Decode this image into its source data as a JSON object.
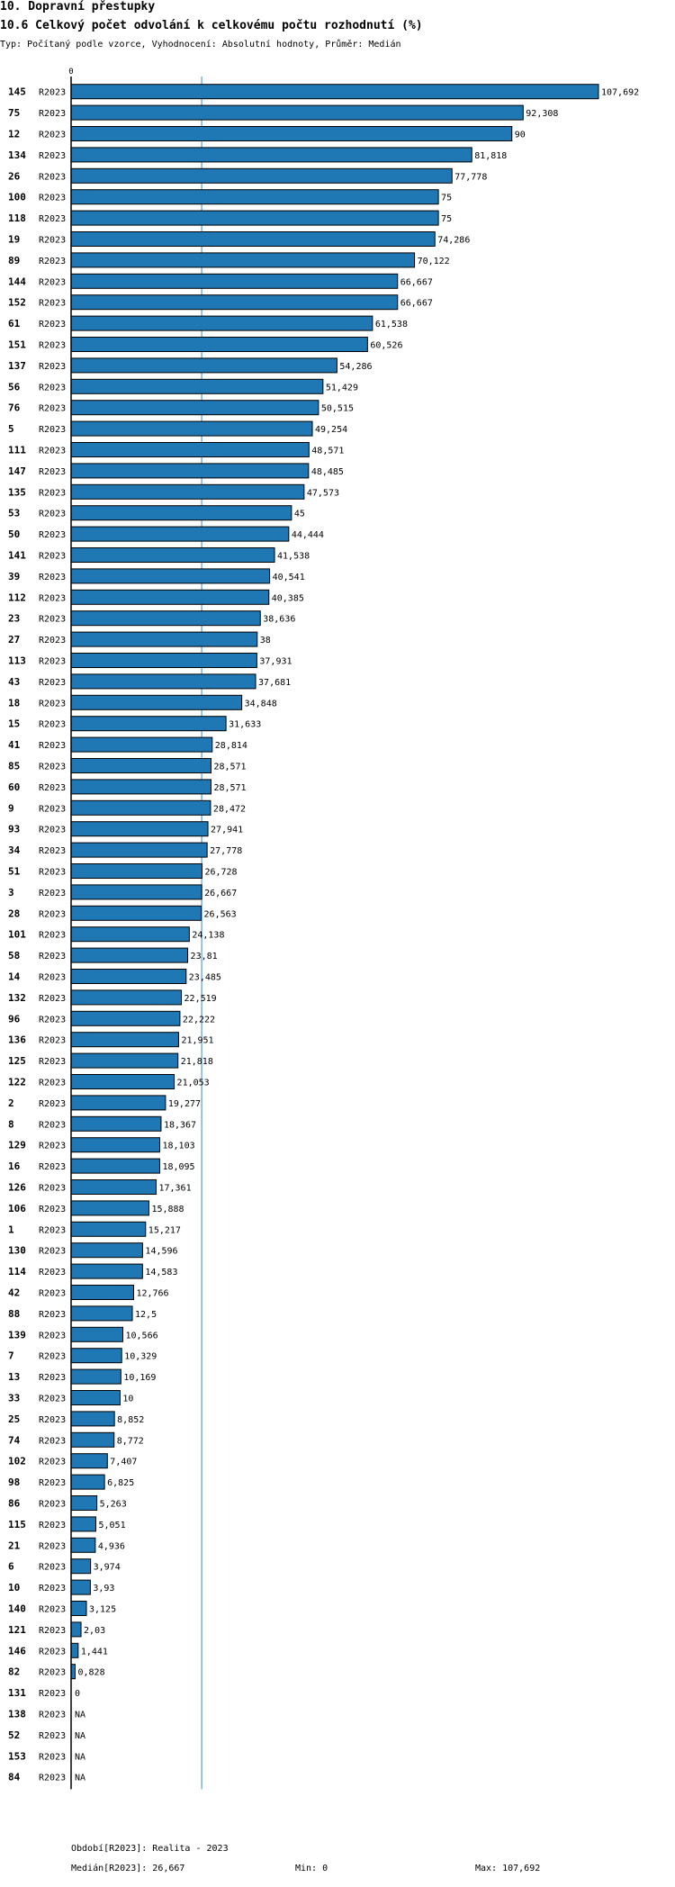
{
  "chart_data": {
    "type": "bar",
    "orientation": "horizontal",
    "title": "10. Dopravní přestupky",
    "subtitle": "10.6 Celkový počet odvolání k celkovému počtu rozhodnutí (%)",
    "description": "Typ: Počítaný podle vzorce, Vyhodnocení: Absolutní hodnoty, Průměr: Medián",
    "axis_zero_label": "0",
    "series_name": "R2023",
    "categories": [
      "145",
      "75",
      "12",
      "134",
      "26",
      "100",
      "118",
      "19",
      "89",
      "144",
      "152",
      "61",
      "151",
      "137",
      "56",
      "76",
      "5",
      "111",
      "147",
      "135",
      "53",
      "50",
      "141",
      "39",
      "112",
      "23",
      "27",
      "113",
      "43",
      "18",
      "15",
      "41",
      "85",
      "60",
      "9",
      "93",
      "34",
      "51",
      "3",
      "28",
      "101",
      "58",
      "14",
      "132",
      "96",
      "136",
      "125",
      "122",
      "2",
      "8",
      "129",
      "16",
      "126",
      "106",
      "1",
      "130",
      "114",
      "42",
      "88",
      "139",
      "7",
      "13",
      "33",
      "25",
      "74",
      "102",
      "98",
      "86",
      "115",
      "21",
      "6",
      "10",
      "140",
      "121",
      "146",
      "82",
      "131",
      "138",
      "52",
      "153",
      "84"
    ],
    "values": [
      107.692,
      92.308,
      90,
      81.818,
      77.778,
      75,
      75,
      74.286,
      70.122,
      66.667,
      66.667,
      61.538,
      60.526,
      54.286,
      51.429,
      50.515,
      49.254,
      48.571,
      48.485,
      47.573,
      45,
      44.444,
      41.538,
      40.541,
      40.385,
      38.636,
      38,
      37.931,
      37.681,
      34.848,
      31.633,
      28.814,
      28.571,
      28.571,
      28.472,
      27.941,
      27.778,
      26.728,
      26.667,
      26.563,
      24.138,
      23.81,
      23.485,
      22.519,
      22.222,
      21.951,
      21.818,
      21.053,
      19.277,
      18.367,
      18.103,
      18.095,
      17.361,
      15.888,
      15.217,
      14.596,
      14.583,
      12.766,
      12.5,
      10.566,
      10.329,
      10.169,
      10,
      8.852,
      8.772,
      7.407,
      6.825,
      5.263,
      5.051,
      4.936,
      3.974,
      3.93,
      3.125,
      2.03,
      1.441,
      0.828,
      0,
      null,
      null,
      null,
      null
    ],
    "value_labels": [
      "107,692",
      "92,308",
      "90",
      "81,818",
      "77,778",
      "75",
      "75",
      "74,286",
      "70,122",
      "66,667",
      "66,667",
      "61,538",
      "60,526",
      "54,286",
      "51,429",
      "50,515",
      "49,254",
      "48,571",
      "48,485",
      "47,573",
      "45",
      "44,444",
      "41,538",
      "40,541",
      "40,385",
      "38,636",
      "38",
      "37,931",
      "37,681",
      "34,848",
      "31,633",
      "28,814",
      "28,571",
      "28,571",
      "28,472",
      "27,941",
      "27,778",
      "26,728",
      "26,667",
      "26,563",
      "24,138",
      "23,81",
      "23,485",
      "22,519",
      "22,222",
      "21,951",
      "21,818",
      "21,053",
      "19,277",
      "18,367",
      "18,103",
      "18,095",
      "17,361",
      "15,888",
      "15,217",
      "14,596",
      "14,583",
      "12,766",
      "12,5",
      "10,566",
      "10,329",
      "10,169",
      "10",
      "8,852",
      "8,772",
      "7,407",
      "6,825",
      "5,263",
      "5,051",
      "4,936",
      "3,974",
      "3,93",
      "3,125",
      "2,03",
      "1,441",
      "0,828",
      "0",
      "NA",
      "NA",
      "NA",
      "NA"
    ],
    "median": 26.667,
    "xlim": [
      0,
      107.692
    ],
    "grid": false,
    "bar_color": "#1f77b4",
    "bar_edge_color": "#000000",
    "median_line_color": "#5b9bd5"
  },
  "footer": {
    "period": "Období[R2023]: Realita - 2023",
    "median": "Medián[R2023]: 26,667",
    "min": "Min: 0",
    "max": "Max: 107,692"
  }
}
